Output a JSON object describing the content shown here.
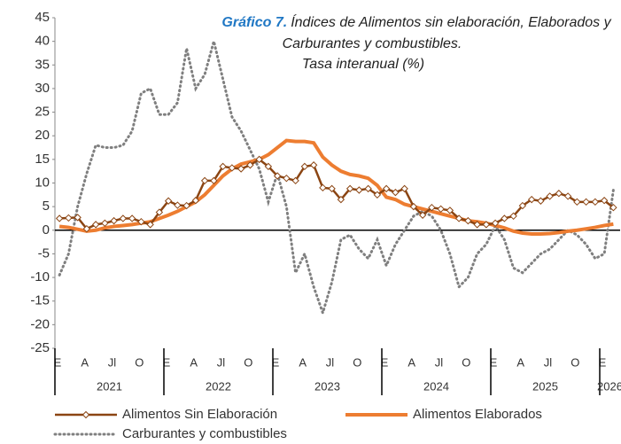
{
  "chart_data": {
    "type": "line",
    "title_label": "Gráfico 7.",
    "title_lines": [
      "Índices de Alimentos sin elaboración, Elaborados y",
      "Carburantes y combustibles."
    ],
    "subtitle": "Tasa interanual (%)",
    "categories": [
      "E",
      null,
      null,
      "A",
      null,
      null,
      "Jl",
      null,
      null,
      "O",
      null,
      null,
      "E",
      null,
      null,
      "A",
      null,
      null,
      "Jl",
      null,
      null,
      "O",
      null,
      null,
      "E",
      null,
      null,
      "A",
      null,
      null,
      "Jl",
      null,
      null,
      "O",
      null,
      null,
      "E",
      null,
      null,
      "A",
      null,
      null,
      "Jl",
      null,
      null,
      "O",
      null,
      null,
      "E",
      null,
      null,
      "A",
      null,
      null,
      "Jl",
      null,
      null,
      "O",
      null,
      null,
      "E",
      null
    ],
    "years": [
      "2021",
      "2022",
      "2023",
      "2024",
      "2025",
      "2026"
    ],
    "ylim": [
      -25,
      45
    ],
    "yticks": [
      -25,
      -20,
      -15,
      -10,
      -5,
      0,
      5,
      10,
      15,
      20,
      25,
      30,
      35,
      40,
      45
    ],
    "series": [
      {
        "name": "Alimentos Sin Elaboración",
        "color": "#8b4513",
        "marker": "diamond",
        "values": [
          2.5,
          2.6,
          2.7,
          0.3,
          1.2,
          1.5,
          2,
          2.5,
          2.5,
          1.8,
          1.2,
          3.8,
          6.2,
          5.3,
          5.2,
          6.3,
          10.5,
          10.5,
          13.5,
          13.2,
          13,
          13.8,
          15,
          13.5,
          11.5,
          11,
          10.5,
          13.5,
          13.8,
          9,
          8.8,
          6.5,
          8.8,
          8.5,
          8.8,
          7.5,
          8.8,
          8,
          8.8,
          5,
          3.2,
          4.8,
          4.5,
          4.2,
          2.5,
          2,
          1.2,
          1.2,
          1.5,
          2.5,
          3,
          5.2,
          6.5,
          6.2,
          7.2,
          7.8,
          7.2,
          6,
          6,
          6,
          6.3,
          4.8
        ]
      },
      {
        "name": "Alimentos Elaborados",
        "color": "#ed7d31",
        "values": [
          0.8,
          0.6,
          0.2,
          -0.2,
          0,
          0.5,
          0.8,
          1,
          1.2,
          1.5,
          1.8,
          2.5,
          3.2,
          4,
          5,
          6,
          7.5,
          9.5,
          11.5,
          13,
          14,
          14.5,
          15,
          16,
          17.5,
          19,
          18.8,
          18.8,
          18.5,
          15.5,
          13.8,
          12.5,
          11.8,
          11.5,
          11,
          9.5,
          7,
          6.5,
          5.5,
          5,
          4.5,
          4,
          3.5,
          3,
          2.5,
          2,
          1.8,
          1.5,
          1,
          0.5,
          -0.2,
          -0.6,
          -0.8,
          -0.8,
          -0.7,
          -0.5,
          -0.2,
          0,
          0.3,
          0.6,
          1,
          1.3
        ]
      },
      {
        "name": "Carburantes y combustibles",
        "color": "#7f7f7f",
        "dash": "dotted",
        "values": [
          -9.5,
          -5,
          5,
          12,
          18,
          17.5,
          17.5,
          18,
          21,
          29,
          30,
          24.5,
          24.5,
          27,
          38.5,
          30,
          33,
          40,
          32,
          24,
          21,
          17,
          13,
          6,
          12,
          5,
          -9,
          -5,
          -12,
          -17.5,
          -11,
          -2,
          -1,
          -4,
          -6,
          -2,
          -7.5,
          -3,
          0,
          3,
          4,
          3,
          0,
          -5,
          -12,
          -10,
          -5,
          -3,
          1,
          -2,
          -8,
          -9,
          -7,
          -5,
          -4,
          -2,
          0,
          -1,
          -3,
          -6,
          -5,
          8.5
        ]
      }
    ]
  }
}
